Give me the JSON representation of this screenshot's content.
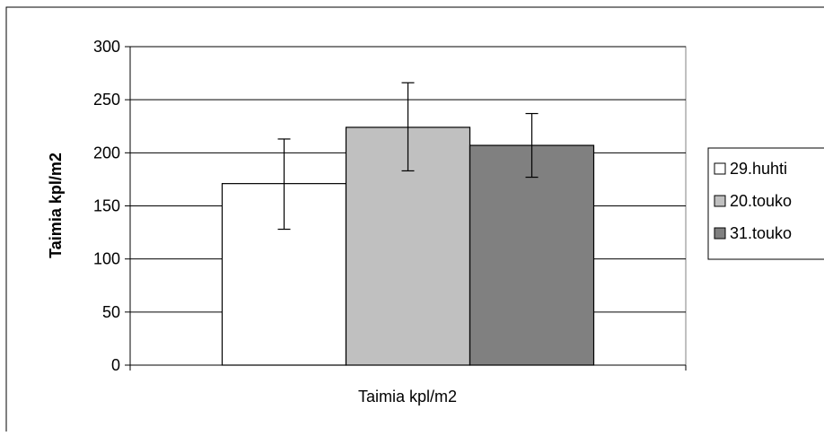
{
  "chart_data": {
    "type": "bar",
    "title": "",
    "xlabel": "Taimia kpl/m2",
    "ylabel": "Taimia kpl/m2",
    "ylim": [
      0,
      300
    ],
    "yticks": [
      0,
      50,
      100,
      150,
      200,
      250,
      300
    ],
    "ytick_labels": [
      "0",
      "50",
      "100",
      "150",
      "200",
      "250",
      "300"
    ],
    "grid": true,
    "legend_position": "right",
    "series": [
      {
        "name": "29.huhti",
        "value": 171,
        "error_low": 128,
        "error_high": 213,
        "color": "#ffffff"
      },
      {
        "name": "20.touko",
        "value": 224,
        "error_low": 183,
        "error_high": 266,
        "color": "#c0c0c0"
      },
      {
        "name": "31.touko",
        "value": 207,
        "error_low": 177,
        "error_high": 237,
        "color": "#808080"
      }
    ]
  }
}
